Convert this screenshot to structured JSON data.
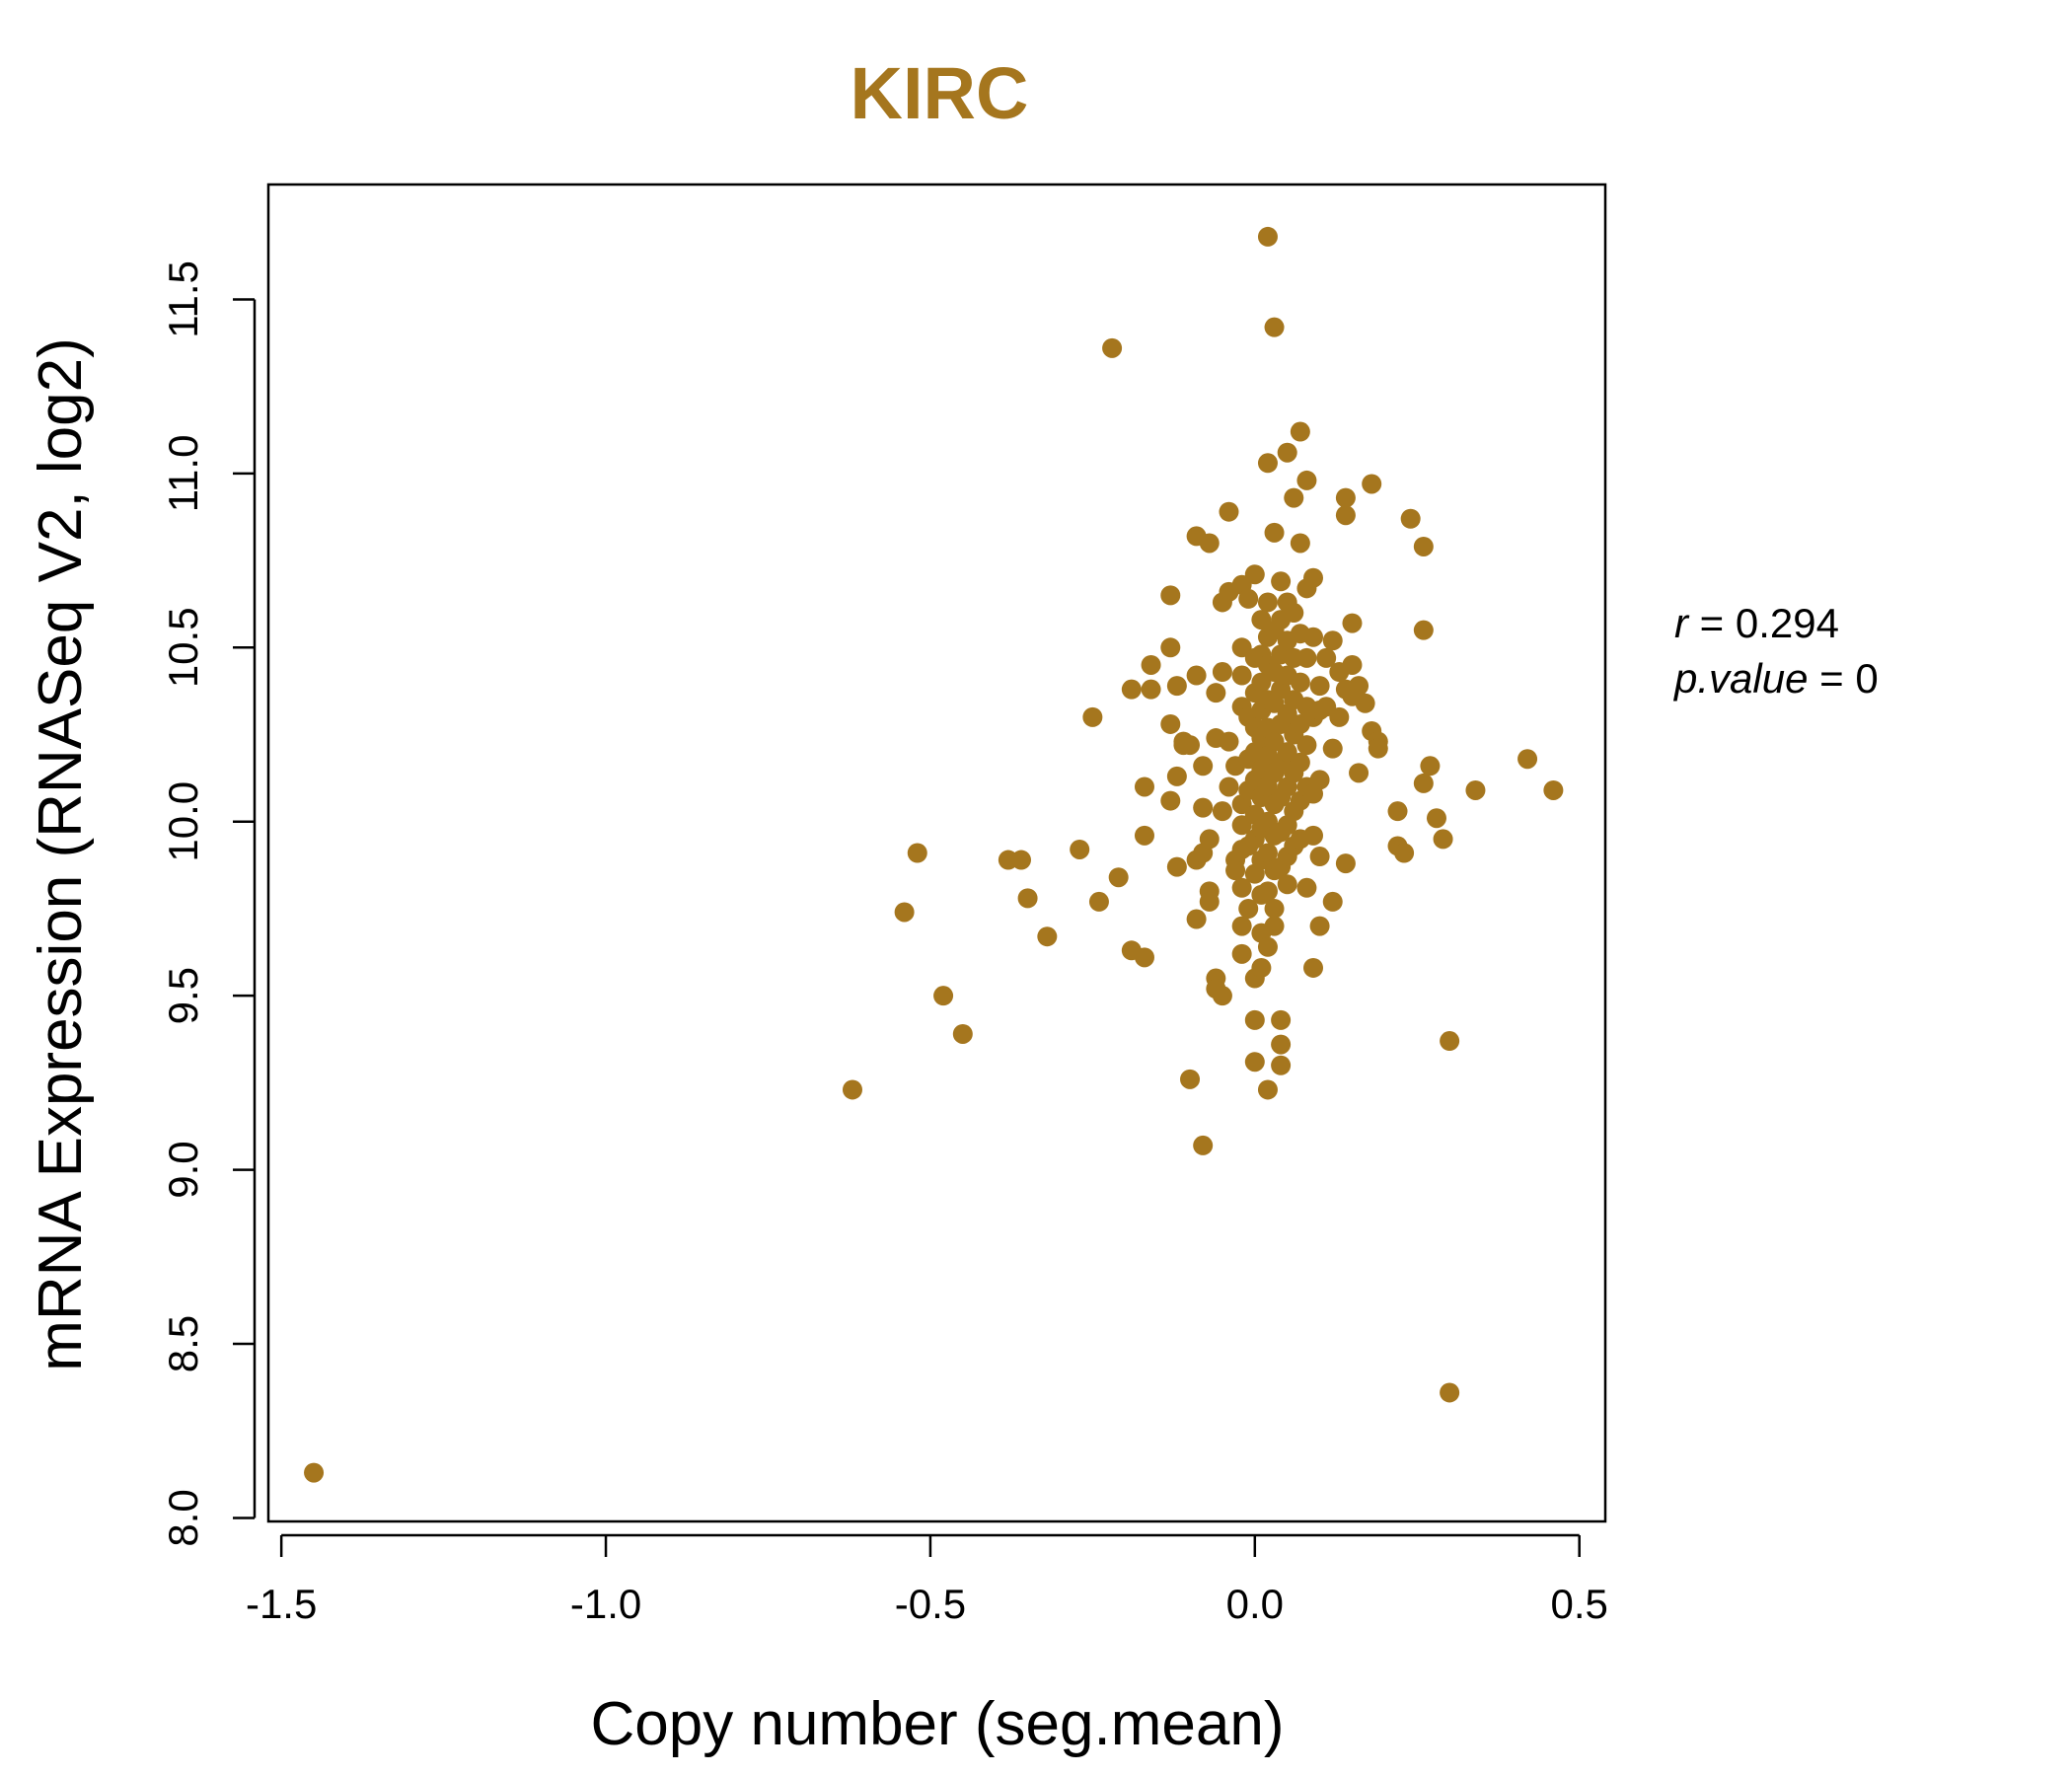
{
  "chart_data": {
    "type": "scatter",
    "title": "KIRC",
    "xlabel": "Copy number (seg.mean)",
    "ylabel": "mRNA Expression (RNASeq V2, log2)",
    "xlim": [
      -1.52,
      0.54
    ],
    "ylim": [
      7.99,
      11.83
    ],
    "xticks": [
      -1.5,
      -1.0,
      -0.5,
      0.0,
      0.5
    ],
    "xtick_labels": [
      "-1.5",
      "-1.0",
      "-0.5",
      "0.0",
      "0.5"
    ],
    "yticks": [
      8.0,
      8.5,
      9.0,
      9.5,
      10.0,
      10.5,
      11.0,
      11.5
    ],
    "ytick_labels": [
      "8.0",
      "8.5",
      "9.0",
      "9.5",
      "10.0",
      "10.5",
      "11.0",
      "11.5"
    ],
    "stats": {
      "r_label": "r",
      "r_value": "0.294",
      "p_label": "p.value",
      "p_value": "0"
    },
    "colors": {
      "points": "#a5761e",
      "title": "#a5761e",
      "axis": "#000000"
    },
    "points": [
      [
        -1.45,
        8.13
      ],
      [
        -0.62,
        9.23
      ],
      [
        -0.54,
        9.74
      ],
      [
        -0.52,
        9.91
      ],
      [
        -0.48,
        9.5
      ],
      [
        -0.45,
        9.39
      ],
      [
        -0.38,
        9.89
      ],
      [
        -0.36,
        9.89
      ],
      [
        -0.35,
        9.78
      ],
      [
        -0.32,
        9.67
      ],
      [
        -0.27,
        9.92
      ],
      [
        -0.25,
        10.3
      ],
      [
        -0.24,
        9.77
      ],
      [
        -0.22,
        11.36
      ],
      [
        -0.21,
        9.84
      ],
      [
        -0.19,
        10.38
      ],
      [
        -0.19,
        9.63
      ],
      [
        -0.17,
        10.1
      ],
      [
        -0.17,
        9.96
      ],
      [
        -0.17,
        9.61
      ],
      [
        -0.16,
        10.45
      ],
      [
        -0.16,
        10.38
      ],
      [
        -0.13,
        10.65
      ],
      [
        -0.13,
        10.5
      ],
      [
        -0.13,
        10.28
      ],
      [
        -0.13,
        10.06
      ],
      [
        -0.12,
        10.39
      ],
      [
        -0.12,
        10.13
      ],
      [
        -0.12,
        9.87
      ],
      [
        -0.11,
        10.23
      ],
      [
        -0.11,
        10.22
      ],
      [
        -0.1,
        9.26
      ],
      [
        -0.1,
        10.22
      ],
      [
        -0.09,
        10.42
      ],
      [
        -0.09,
        10.82
      ],
      [
        -0.09,
        9.89
      ],
      [
        -0.09,
        9.72
      ],
      [
        -0.08,
        9.07
      ],
      [
        -0.08,
        10.16
      ],
      [
        -0.08,
        10.04
      ],
      [
        -0.08,
        9.91
      ],
      [
        -0.07,
        10.8
      ],
      [
        -0.07,
        9.8
      ],
      [
        -0.07,
        9.77
      ],
      [
        -0.07,
        9.95
      ],
      [
        -0.06,
        10.37
      ],
      [
        -0.06,
        10.24
      ],
      [
        -0.06,
        9.55
      ],
      [
        -0.06,
        9.52
      ],
      [
        -0.05,
        10.63
      ],
      [
        -0.05,
        10.03
      ],
      [
        -0.05,
        9.5
      ],
      [
        -0.05,
        10.43
      ],
      [
        -0.04,
        10.89
      ],
      [
        -0.04,
        10.66
      ],
      [
        -0.04,
        10.23
      ],
      [
        -0.04,
        10.1
      ],
      [
        -0.03,
        10.16
      ],
      [
        -0.03,
        9.89
      ],
      [
        -0.03,
        9.86
      ],
      [
        -0.02,
        10.68
      ],
      [
        -0.02,
        10.5
      ],
      [
        -0.02,
        10.42
      ],
      [
        -0.02,
        10.33
      ],
      [
        -0.02,
        10.05
      ],
      [
        -0.02,
        9.99
      ],
      [
        -0.02,
        9.92
      ],
      [
        -0.02,
        9.81
      ],
      [
        -0.02,
        9.7
      ],
      [
        -0.02,
        9.62
      ],
      [
        -0.01,
        10.64
      ],
      [
        -0.01,
        10.3
      ],
      [
        -0.01,
        10.18
      ],
      [
        -0.01,
        10.09
      ],
      [
        -0.01,
        9.93
      ],
      [
        -0.01,
        9.75
      ],
      [
        0.0,
        10.71
      ],
      [
        0.0,
        10.47
      ],
      [
        0.0,
        10.37
      ],
      [
        0.0,
        10.27
      ],
      [
        0.0,
        10.2
      ],
      [
        0.0,
        10.12
      ],
      [
        0.0,
        10.02
      ],
      [
        0.0,
        9.95
      ],
      [
        0.0,
        9.85
      ],
      [
        0.0,
        9.55
      ],
      [
        0.0,
        9.31
      ],
      [
        0.0,
        9.43
      ],
      [
        0.01,
        10.58
      ],
      [
        0.01,
        10.48
      ],
      [
        0.01,
        10.4
      ],
      [
        0.01,
        10.32
      ],
      [
        0.01,
        10.24
      ],
      [
        0.01,
        10.15
      ],
      [
        0.01,
        10.07
      ],
      [
        0.01,
        9.98
      ],
      [
        0.01,
        9.89
      ],
      [
        0.01,
        9.79
      ],
      [
        0.01,
        9.68
      ],
      [
        0.01,
        9.58
      ],
      [
        0.02,
        11.68
      ],
      [
        0.02,
        10.63
      ],
      [
        0.02,
        10.53
      ],
      [
        0.02,
        10.45
      ],
      [
        0.02,
        10.35
      ],
      [
        0.02,
        10.27
      ],
      [
        0.02,
        10.19
      ],
      [
        0.02,
        10.1
      ],
      [
        0.02,
        10.0
      ],
      [
        0.02,
        9.91
      ],
      [
        0.02,
        9.8
      ],
      [
        0.02,
        9.64
      ],
      [
        0.02,
        9.23
      ],
      [
        0.02,
        11.03
      ],
      [
        0.03,
        11.42
      ],
      [
        0.03,
        10.83
      ],
      [
        0.03,
        10.55
      ],
      [
        0.03,
        10.43
      ],
      [
        0.03,
        10.34
      ],
      [
        0.03,
        10.23
      ],
      [
        0.03,
        10.14
      ],
      [
        0.03,
        10.05
      ],
      [
        0.03,
        9.96
      ],
      [
        0.03,
        9.86
      ],
      [
        0.03,
        9.75
      ],
      [
        0.03,
        9.7
      ],
      [
        0.04,
        10.69
      ],
      [
        0.04,
        10.58
      ],
      [
        0.04,
        10.48
      ],
      [
        0.04,
        10.38
      ],
      [
        0.04,
        10.28
      ],
      [
        0.04,
        10.17
      ],
      [
        0.04,
        10.07
      ],
      [
        0.04,
        9.97
      ],
      [
        0.04,
        9.87
      ],
      [
        0.04,
        9.43
      ],
      [
        0.04,
        9.36
      ],
      [
        0.04,
        9.3
      ],
      [
        0.05,
        11.06
      ],
      [
        0.05,
        10.63
      ],
      [
        0.05,
        10.52
      ],
      [
        0.05,
        10.42
      ],
      [
        0.05,
        10.31
      ],
      [
        0.05,
        10.2
      ],
      [
        0.05,
        10.1
      ],
      [
        0.05,
        9.99
      ],
      [
        0.05,
        9.9
      ],
      [
        0.05,
        9.82
      ],
      [
        0.06,
        10.93
      ],
      [
        0.06,
        10.6
      ],
      [
        0.06,
        10.47
      ],
      [
        0.06,
        10.35
      ],
      [
        0.06,
        10.25
      ],
      [
        0.06,
        10.14
      ],
      [
        0.06,
        10.03
      ],
      [
        0.06,
        9.93
      ],
      [
        0.07,
        11.12
      ],
      [
        0.07,
        10.8
      ],
      [
        0.07,
        10.54
      ],
      [
        0.07,
        10.4
      ],
      [
        0.07,
        10.28
      ],
      [
        0.07,
        10.17
      ],
      [
        0.07,
        10.06
      ],
      [
        0.07,
        9.95
      ],
      [
        0.08,
        10.98
      ],
      [
        0.08,
        10.67
      ],
      [
        0.08,
        10.47
      ],
      [
        0.08,
        10.33
      ],
      [
        0.08,
        10.22
      ],
      [
        0.08,
        10.1
      ],
      [
        0.08,
        9.81
      ],
      [
        0.09,
        10.7
      ],
      [
        0.09,
        10.53
      ],
      [
        0.09,
        10.3
      ],
      [
        0.09,
        10.08
      ],
      [
        0.09,
        9.96
      ],
      [
        0.09,
        9.58
      ],
      [
        0.1,
        10.39
      ],
      [
        0.1,
        10.32
      ],
      [
        0.1,
        10.12
      ],
      [
        0.1,
        9.9
      ],
      [
        0.1,
        9.7
      ],
      [
        0.11,
        10.47
      ],
      [
        0.11,
        10.33
      ],
      [
        0.12,
        10.52
      ],
      [
        0.12,
        10.21
      ],
      [
        0.12,
        9.77
      ],
      [
        0.13,
        10.43
      ],
      [
        0.13,
        10.3
      ],
      [
        0.14,
        10.88
      ],
      [
        0.14,
        10.93
      ],
      [
        0.14,
        10.38
      ],
      [
        0.14,
        9.88
      ],
      [
        0.15,
        10.57
      ],
      [
        0.15,
        10.45
      ],
      [
        0.15,
        10.36
      ],
      [
        0.16,
        10.39
      ],
      [
        0.16,
        10.14
      ],
      [
        0.17,
        10.34
      ],
      [
        0.18,
        10.97
      ],
      [
        0.18,
        10.26
      ],
      [
        0.19,
        10.23
      ],
      [
        0.19,
        10.21
      ],
      [
        0.22,
        9.93
      ],
      [
        0.22,
        10.03
      ],
      [
        0.23,
        9.91
      ],
      [
        0.24,
        10.87
      ],
      [
        0.26,
        10.79
      ],
      [
        0.26,
        10.55
      ],
      [
        0.26,
        10.11
      ],
      [
        0.27,
        10.16
      ],
      [
        0.28,
        10.01
      ],
      [
        0.29,
        9.95
      ],
      [
        0.3,
        8.36
      ],
      [
        0.3,
        9.37
      ],
      [
        0.34,
        10.09
      ],
      [
        0.42,
        10.18
      ],
      [
        0.46,
        10.09
      ]
    ]
  }
}
